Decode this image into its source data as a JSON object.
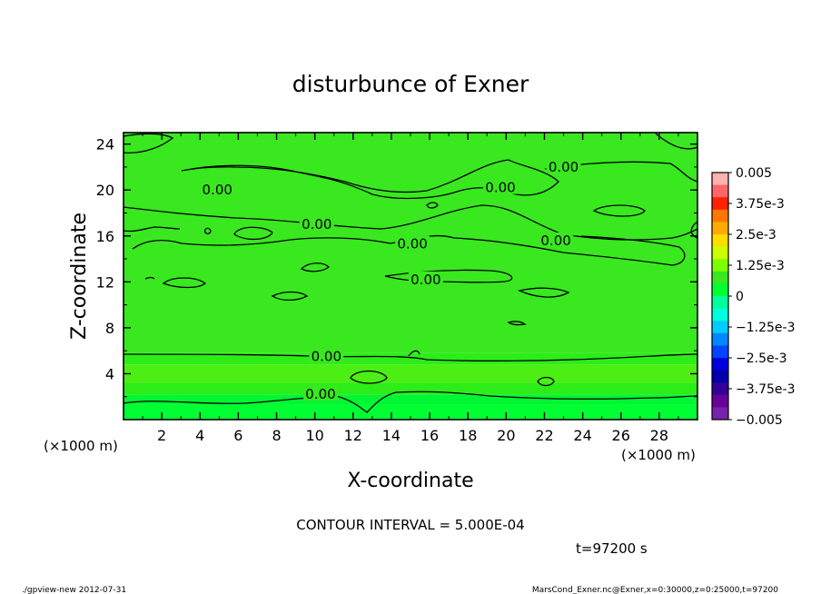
{
  "chart_data": {
    "type": "heatmap",
    "subtype": "filled-contour",
    "title": "disturbunce of Exner",
    "xlabel": "X-coordinate",
    "ylabel": "Z-coordinate",
    "x_unit_label": "(×1000 m)",
    "y_unit_label": "(×1000 m)",
    "xlim": [
      0,
      30
    ],
    "ylim": [
      0,
      25
    ],
    "x_ticks": [
      2,
      4,
      6,
      8,
      10,
      12,
      14,
      16,
      18,
      20,
      22,
      24,
      26,
      28
    ],
    "y_ticks": [
      4,
      8,
      12,
      16,
      20,
      24
    ],
    "grid": false,
    "contour_interval_text": "CONTOUR INTERVAL = 5.000E-04",
    "time_text": "t=97200 s",
    "contour_label_text": "0.00",
    "contour_labels": [
      {
        "x": 4.9,
        "y": 20.0
      },
      {
        "x": 10.1,
        "y": 17.0
      },
      {
        "x": 15.1,
        "y": 15.3
      },
      {
        "x": 15.8,
        "y": 12.2
      },
      {
        "x": 19.7,
        "y": 20.2
      },
      {
        "x": 22.6,
        "y": 15.6
      },
      {
        "x": 23.0,
        "y": 22.0
      },
      {
        "x": 10.6,
        "y": 5.5
      },
      {
        "x": 10.3,
        "y": 2.2
      }
    ],
    "field_levels": [
      {
        "y": [
          0,
          1.3
        ],
        "color": "#00ff33"
      },
      {
        "y": [
          1.3,
          2.2
        ],
        "color": "#00f532"
      },
      {
        "y": [
          2.2,
          3.2
        ],
        "color": "#2ced18"
      },
      {
        "y": [
          3.2,
          4.8
        ],
        "color": "#4cee14"
      },
      {
        "y": [
          4.8,
          5.8
        ],
        "color": "#2ced18"
      },
      {
        "y": [
          5.8,
          25
        ],
        "color": "#39e81f"
      }
    ],
    "colorbar": {
      "labels": [
        "0.005",
        "3.75e-3",
        "2.5e-3",
        "1.25e-3",
        "0",
        "−1.25e-3",
        "−2.5e-3",
        "−3.75e-3",
        "−0.005"
      ],
      "values": [
        0.005,
        0.00375,
        0.0025,
        0.00125,
        0,
        -0.00125,
        -0.0025,
        -0.00375,
        -0.005
      ],
      "colors": [
        "#ffb0b0",
        "#ff6666",
        "#ff2200",
        "#ff7700",
        "#ffaa00",
        "#ffdd00",
        "#ccff00",
        "#7dff00",
        "#39e81f",
        "#00ff33",
        "#00ff99",
        "#00ffdd",
        "#00ccff",
        "#0088ff",
        "#0044ff",
        "#0000dd",
        "#0000aa",
        "#330099",
        "#660099",
        "#7722aa"
      ]
    }
  },
  "footer": {
    "left": "./gpview-new   2012-07-31",
    "right": "MarsCond_Exner.nc@Exner,x=0:30000,z=0:25000,t=97200"
  }
}
